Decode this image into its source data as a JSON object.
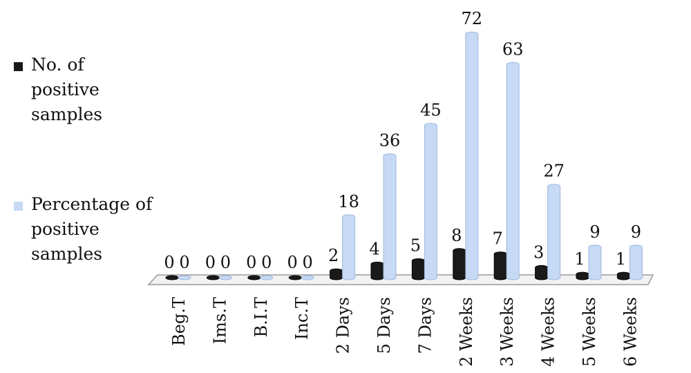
{
  "chart_data": {
    "type": "bar",
    "categories": [
      "Beg.T",
      "Ims.T",
      "B.I.T",
      "Inc.T",
      "2 Days",
      "5 Days",
      "7 Days",
      "2 Weeks",
      "3 Weeks",
      "4 Weeks",
      "5 Weeks",
      "6 Weeks"
    ],
    "series": [
      {
        "name": "No. of positive samples",
        "color": "#1a1a1a",
        "values": [
          0,
          0,
          0,
          0,
          2,
          4,
          5,
          8,
          7,
          3,
          1,
          1
        ]
      },
      {
        "name": "Percentage of positive samples",
        "color": "#c6d9f5",
        "values": [
          0,
          0,
          0,
          0,
          18,
          36,
          45,
          72,
          63,
          27,
          9,
          9
        ]
      }
    ]
  }
}
